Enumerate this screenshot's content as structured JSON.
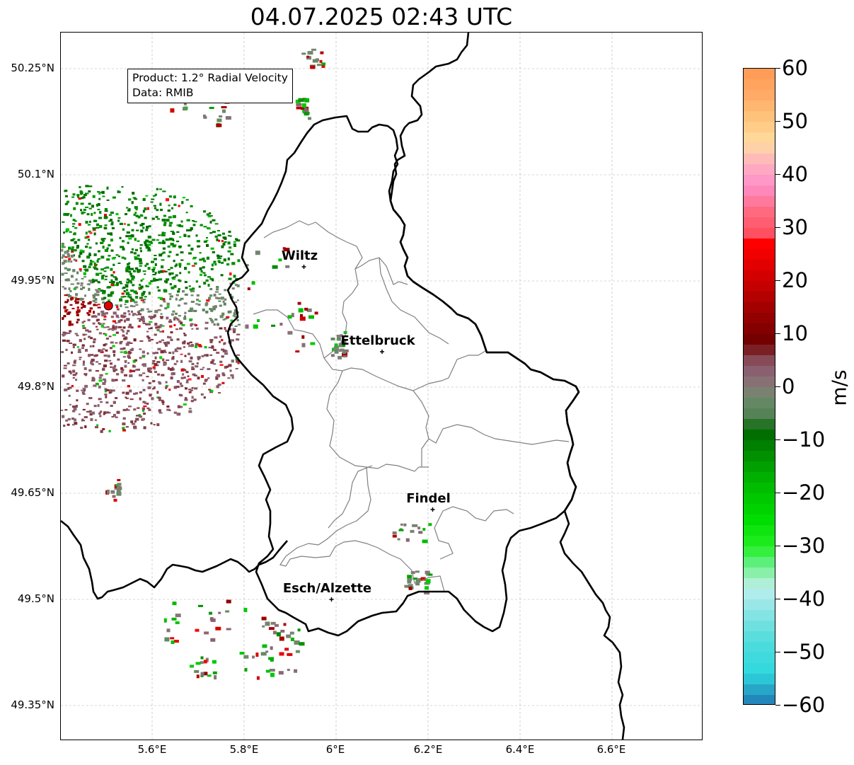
{
  "title": "04.07.2025 02:43 UTC",
  "info": {
    "product": "Product: 1.2° Radial Velocity",
    "data_source": "Data: RMIB"
  },
  "lat_labels": [
    "50.25°N",
    "50.1°N",
    "49.95°N",
    "49.8°N",
    "49.65°N",
    "49.5°N",
    "49.35°N"
  ],
  "lon_labels": [
    "5.6°E",
    "5.8°E",
    "6°E",
    "6.2°E",
    "6.4°E",
    "6.6°E"
  ],
  "cities": [
    {
      "name": "Wiltz",
      "lon": 5.93,
      "lat": 49.97
    },
    {
      "name": "Ettelbruck",
      "lon": 6.1,
      "lat": 49.85
    },
    {
      "name": "Findel",
      "lon": 6.21,
      "lat": 49.627
    },
    {
      "name": "Esch/Alzette",
      "lon": 5.99,
      "lat": 49.5
    }
  ],
  "radar_site": {
    "lon": 5.505,
    "lat": 49.915
  },
  "colorbar": {
    "unit": "m/s",
    "min": -60,
    "max": 60,
    "tick_values": [
      60,
      50,
      40,
      30,
      20,
      10,
      0,
      -10,
      -20,
      -30,
      -40,
      -50,
      -60
    ],
    "tick_labels": [
      "60",
      "50",
      "40",
      "30",
      "20",
      "10",
      "0",
      "−10",
      "−20",
      "−30",
      "−40",
      "−50",
      "−60"
    ],
    "stops": [
      {
        "v": -60,
        "c": "#1f77b4"
      },
      {
        "v": -57,
        "c": "#27a6c8"
      },
      {
        "v": -54,
        "c": "#2fd8de"
      },
      {
        "v": -48,
        "c": "#4fdcdc"
      },
      {
        "v": -42,
        "c": "#8ee4e4"
      },
      {
        "v": -38,
        "c": "#bdeef0"
      },
      {
        "v": -36,
        "c": "#a0f0c0"
      },
      {
        "v": -33,
        "c": "#5cf07a"
      },
      {
        "v": -30,
        "c": "#22ee22"
      },
      {
        "v": -25,
        "c": "#00dd00"
      },
      {
        "v": -18,
        "c": "#00b800"
      },
      {
        "v": -12,
        "c": "#008800"
      },
      {
        "v": -8,
        "c": "#006600"
      },
      {
        "v": -6,
        "c": "#4e8050"
      },
      {
        "v": -2,
        "c": "#6b8a6a"
      },
      {
        "v": 0,
        "c": "#867a78"
      },
      {
        "v": 3,
        "c": "#8a6070"
      },
      {
        "v": 6,
        "c": "#86404a"
      },
      {
        "v": 8,
        "c": "#6e0000"
      },
      {
        "v": 14,
        "c": "#990000"
      },
      {
        "v": 20,
        "c": "#cc0000"
      },
      {
        "v": 27,
        "c": "#ff0000"
      },
      {
        "v": 28,
        "c": "#ff4a5a"
      },
      {
        "v": 33,
        "c": "#ff6a80"
      },
      {
        "v": 38,
        "c": "#ff90c8"
      },
      {
        "v": 42,
        "c": "#ffb0c0"
      },
      {
        "v": 46,
        "c": "#ffdca0"
      },
      {
        "v": 50,
        "c": "#ffc880"
      },
      {
        "v": 55,
        "c": "#ffaa66"
      },
      {
        "v": 60,
        "c": "#ff9a55"
      }
    ]
  }
}
